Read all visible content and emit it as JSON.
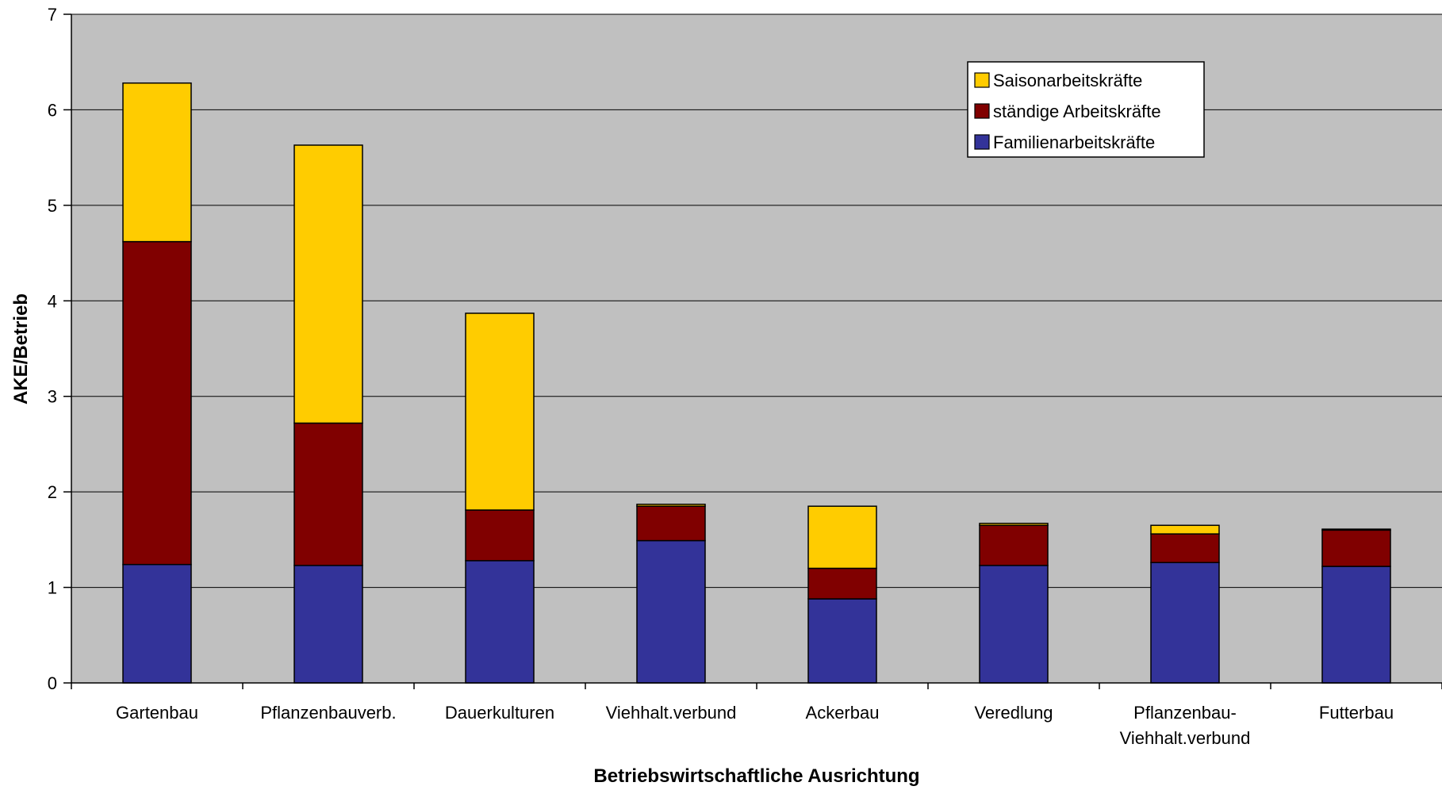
{
  "chart_data": {
    "type": "bar",
    "stacked": true,
    "title": "",
    "xlabel": "Betriebswirtschaftliche Ausrichtung",
    "ylabel": "AKE/Betrieb",
    "ylim": [
      0,
      7
    ],
    "yticks": [
      0,
      1,
      2,
      3,
      4,
      5,
      6,
      7
    ],
    "grid": true,
    "legend_position": "top-right",
    "categories": [
      [
        "Gartenbau"
      ],
      [
        "Pflanzenbauverb."
      ],
      [
        "Dauerkulturen"
      ],
      [
        "Viehhalt.verbund"
      ],
      [
        "Ackerbau"
      ],
      [
        "Veredlung"
      ],
      [
        "Pflanzenbau-",
        "Viehhalt.verbund"
      ],
      [
        "Futterbau"
      ]
    ],
    "series": [
      {
        "name": "Familienarbeitskräfte",
        "color": "#333399",
        "values": [
          1.24,
          1.23,
          1.28,
          1.49,
          0.88,
          1.23,
          1.26,
          1.22
        ]
      },
      {
        "name": "ständige Arbeitskräfte",
        "color": "#800000",
        "values": [
          3.38,
          1.49,
          0.53,
          0.36,
          0.32,
          0.42,
          0.3,
          0.38
        ]
      },
      {
        "name": "Saisonarbeitskräfte",
        "color": "#FFCC00",
        "values": [
          1.66,
          2.91,
          2.06,
          0.02,
          0.65,
          0.02,
          0.09,
          0.01
        ]
      }
    ],
    "legend_order": [
      "Saisonarbeitskräfte",
      "ständige Arbeitskräfte",
      "Familienarbeitskräfte"
    ],
    "plot_background": "#C0C0C0"
  }
}
